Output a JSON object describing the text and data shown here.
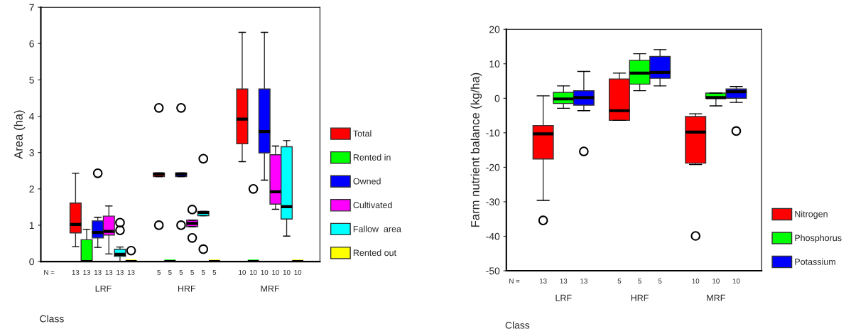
{
  "chart_data": [
    {
      "type": "box",
      "ylabel": "Area (ha)",
      "xlabel": "Class",
      "categories": [
        "LRF",
        "HRF",
        "MRF"
      ],
      "ylim": [
        0,
        7
      ],
      "yticks": [
        0,
        1,
        2,
        3,
        4,
        5,
        6,
        7
      ],
      "grid": false,
      "legend": "right",
      "annotations": [
        "N ="
      ],
      "series": [
        {
          "name": "Total",
          "color": "#ff0000",
          "value_labels": [
            "13",
            "5",
            "10"
          ],
          "boxes": [
            {
              "low": 0.41,
              "q1": 0.79,
              "median": 1.02,
              "q3": 1.61,
              "high": 2.43
            },
            {
              "low": 2.34,
              "q1": 2.34,
              "median": 2.41,
              "q3": 2.44,
              "high": 2.44,
              "outliers": [
                4.23,
                1.0
              ]
            },
            {
              "low": 2.75,
              "q1": 3.24,
              "median": 3.92,
              "q3": 4.75,
              "high": 6.31
            }
          ]
        },
        {
          "name": "Rented in",
          "color": "#00ff00",
          "value_labels": [
            "13",
            "5",
            "10"
          ],
          "boxes": [
            {
              "low": 0,
              "q1": 0,
              "median": 0,
              "q3": 0.6,
              "high": 0.89
            },
            {
              "low": 0,
              "q1": 0,
              "median": 0,
              "q3": 0,
              "high": 0
            },
            {
              "low": 0,
              "q1": 0,
              "median": 0,
              "q3": 0,
              "high": 0,
              "outliers": [
                2.0
              ]
            }
          ]
        },
        {
          "name": "Owned",
          "color": "#0000ff",
          "value_labels": [
            "13",
            "5",
            "10"
          ],
          "boxes": [
            {
              "low": 0.39,
              "q1": 0.65,
              "median": 0.8,
              "q3": 1.12,
              "high": 1.22,
              "outliers": [
                2.43
              ]
            },
            {
              "low": 2.34,
              "q1": 2.34,
              "median": 2.41,
              "q3": 2.44,
              "high": 2.44,
              "outliers": [
                4.23,
                1.0
              ]
            },
            {
              "low": 2.24,
              "q1": 2.99,
              "median": 3.58,
              "q3": 4.75,
              "high": 6.31
            }
          ]
        },
        {
          "name": "Cultivated",
          "color": "#ff00ff",
          "value_labels": [
            "13",
            "5",
            "10"
          ],
          "boxes": [
            {
              "low": 0.21,
              "q1": 0.73,
              "median": 0.83,
              "q3": 1.25,
              "high": 1.53
            },
            {
              "low": 0.96,
              "q1": 0.96,
              "median": 1.05,
              "q3": 1.14,
              "high": 1.14,
              "outliers": [
                1.43,
                0.65
              ]
            },
            {
              "low": 1.44,
              "q1": 1.58,
              "median": 1.92,
              "q3": 2.94,
              "high": 3.18
            }
          ]
        },
        {
          "name": "Fallow  area",
          "color": "#00ffff",
          "value_labels": [
            "13",
            "5",
            "10"
          ],
          "boxes": [
            {
              "low": 0,
              "q1": 0.14,
              "median": 0.2,
              "q3": 0.34,
              "high": 0.4,
              "outliers": [
                1.07,
                0.86
              ]
            },
            {
              "low": 1.26,
              "q1": 1.26,
              "median": 1.35,
              "q3": 1.38,
              "high": 1.38,
              "outliers": [
                2.83,
                0.34
              ]
            },
            {
              "low": 0.7,
              "q1": 1.17,
              "median": 1.51,
              "q3": 3.16,
              "high": 3.33
            }
          ]
        },
        {
          "name": "Rented out",
          "color": "#ffff00",
          "value_labels": [
            "13",
            "5",
            "10"
          ],
          "boxes": [
            {
              "low": 0,
              "q1": 0,
              "median": 0,
              "q3": 0,
              "high": 0,
              "outliers": [
                0.3
              ]
            },
            {
              "low": 0,
              "q1": 0,
              "median": 0,
              "q3": 0,
              "high": 0
            },
            {
              "low": 0,
              "q1": 0,
              "median": 0,
              "q3": 0,
              "high": 0
            }
          ]
        }
      ]
    },
    {
      "type": "box",
      "ylabel": "Farm nutrient balance (kg/ha)",
      "xlabel": "Class",
      "categories": [
        "LRF",
        "HRF",
        "MRF"
      ],
      "ylim": [
        -50,
        20
      ],
      "yticks": [
        -50,
        -40,
        -30,
        -20,
        -10,
        0,
        10,
        20
      ],
      "grid": false,
      "legend": "right",
      "annotations": [
        "N ="
      ],
      "series": [
        {
          "name": "Nitrogen",
          "color": "#ff0000",
          "value_labels": [
            "13",
            "5",
            "10"
          ],
          "boxes": [
            {
              "low": -29.6,
              "q1": -17.6,
              "median": -10.3,
              "q3": -7.9,
              "high": 0.7,
              "outliers": [
                -35.4
              ]
            },
            {
              "low": -6.4,
              "q1": -6.4,
              "median": -3.6,
              "q3": 5.6,
              "high": 7.3
            },
            {
              "low": -19.2,
              "q1": -18.8,
              "median": -9.8,
              "q3": -5.3,
              "high": -4.5,
              "outliers": [
                -39.9
              ]
            }
          ]
        },
        {
          "name": "Phosphorus",
          "color": "#00ff00",
          "value_labels": [
            "13",
            "5",
            "10"
          ],
          "boxes": [
            {
              "low": -2.9,
              "q1": -1.5,
              "median": -0.2,
              "q3": 1.7,
              "high": 3.6
            },
            {
              "low": 2.2,
              "q1": 4.1,
              "median": 7.3,
              "q3": 11.0,
              "high": 12.9
            },
            {
              "low": -2.2,
              "q1": 0,
              "median": 0.2,
              "q3": 1.5,
              "high": 1.5
            }
          ]
        },
        {
          "name": "Potassium",
          "color": "#0000ff",
          "value_labels": [
            "13",
            "5",
            "10"
          ],
          "boxes": [
            {
              "low": -3.6,
              "q1": -2.0,
              "median": 0.2,
              "q3": 2.2,
              "high": 7.8,
              "outliers": [
                -15.4
              ]
            },
            {
              "low": 3.6,
              "q1": 5.8,
              "median": 7.5,
              "q3": 12.1,
              "high": 14.1
            },
            {
              "low": -1.2,
              "q1": 0,
              "median": 1.9,
              "q3": 2.7,
              "high": 3.4,
              "outliers": [
                -9.5
              ]
            }
          ]
        }
      ]
    }
  ]
}
